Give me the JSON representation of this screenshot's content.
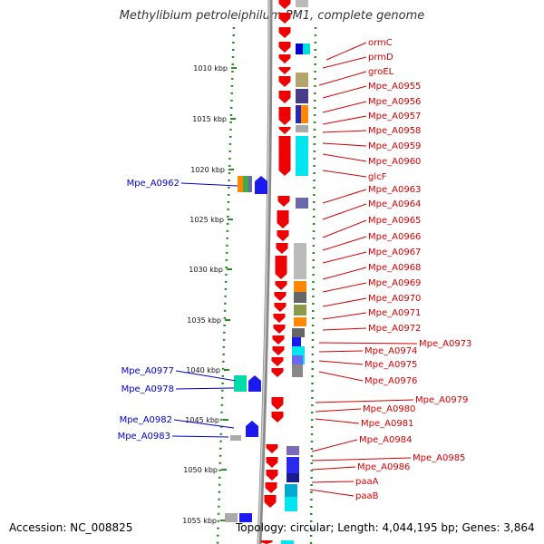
{
  "title": "Methylibium petroleiphilum PM1, complete genome",
  "footer": {
    "accession": "Accession: NC_008825",
    "topology": "Topology: circular; Length: 4,044,195 bp; Genes: 3,864"
  },
  "ticks": [
    {
      "label": "1010 kbp"
    },
    {
      "label": "1015 kbp"
    },
    {
      "label": "1020 kbp"
    },
    {
      "label": "1025 kbp"
    },
    {
      "label": "1030 kbp"
    },
    {
      "label": "1035 kbp"
    },
    {
      "label": "1040 kbp"
    },
    {
      "label": "1045 kbp"
    },
    {
      "label": "1050 kbp"
    },
    {
      "label": "1055 kbp"
    }
  ],
  "right_genes": [
    "ormC",
    "prmD",
    "groEL",
    "Mpe_A0955",
    "Mpe_A0956",
    "Mpe_A0957",
    "Mpe_A0958",
    "Mpe_A0959",
    "Mpe_A0960",
    "glcF",
    "Mpe_A0963",
    "Mpe_A0964",
    "Mpe_A0965",
    "Mpe_A0966",
    "Mpe_A0967",
    "Mpe_A0968",
    "Mpe_A0969",
    "Mpe_A0970",
    "Mpe_A0971",
    "Mpe_A0972",
    "Mpe_A0973",
    "Mpe_A0974",
    "Mpe_A0975",
    "Mpe_A0976",
    "Mpe_A0979",
    "Mpe_A0980",
    "Mpe_A0981",
    "Mpe_A0984",
    "Mpe_A0985",
    "Mpe_A0986",
    "paaA",
    "paaB"
  ],
  "left_genes": [
    "Mpe_A0962",
    "Mpe_A0977",
    "Mpe_A0978",
    "Mpe_A0982",
    "Mpe_A0983"
  ],
  "colors": {
    "forward_gene": "#ee0000",
    "reverse_gene": "#1a1aee",
    "right_label": "#d40000",
    "left_label": "#0000cc",
    "backbone": "#808080",
    "dotted_guide": "#2a8a2a"
  }
}
